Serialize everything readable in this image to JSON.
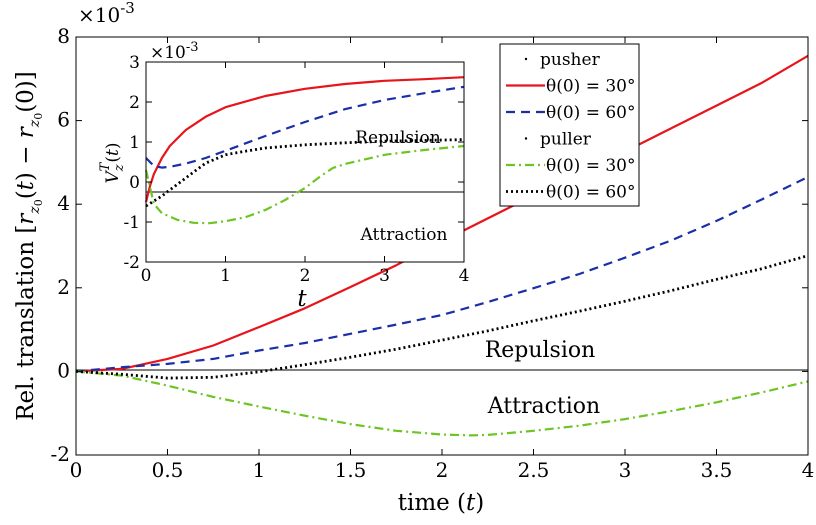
{
  "chart_data": [
    {
      "type": "line",
      "xlabel": "time (t)",
      "ylabel": "Rel. translation [r_{z0}(t) − r_{z0}(0)]",
      "y_exponent": "×10^{-3}",
      "xlim": [
        0,
        4
      ],
      "ylim": [
        -2,
        8
      ],
      "xticks": [
        0,
        0.5,
        1,
        1.5,
        2,
        2.5,
        3,
        3.5,
        4
      ],
      "yticks": [
        -2,
        0,
        2,
        4,
        6,
        8
      ],
      "grid": false,
      "zero_line": true,
      "annotations": [
        "Repulsion",
        "Attraction"
      ],
      "legend": {
        "placement": "top-right",
        "entries": [
          {
            "label": "pusher",
            "header": true
          },
          {
            "label": "θ(0) = 30°",
            "group": "pusher",
            "color": "#e8141c",
            "style": "solid"
          },
          {
            "label": "θ(0) = 60°",
            "group": "pusher",
            "color": "#1a2fa8",
            "style": "dashed"
          },
          {
            "label": "puller",
            "header": true
          },
          {
            "label": "θ(0) = 30°",
            "group": "puller",
            "color": "#6cc521",
            "style": "dashdot"
          },
          {
            "label": "θ(0) = 60°",
            "group": "puller",
            "color": "#000000",
            "style": "dotted"
          }
        ]
      },
      "series": [
        {
          "group": "pusher",
          "theta": "θ(0) = 30°",
          "color": "#e8141c",
          "style": "solid",
          "x": [
            0,
            0.25,
            0.5,
            0.75,
            1,
            1.25,
            1.5,
            1.75,
            2,
            2.25,
            2.5,
            2.75,
            3,
            3.25,
            3.5,
            3.75,
            4
          ],
          "y": [
            0,
            0.06,
            0.3,
            0.62,
            1.06,
            1.51,
            2.02,
            2.54,
            3.11,
            3.66,
            4.21,
            4.74,
            5.26,
            5.81,
            6.36,
            6.91,
            7.55
          ]
        },
        {
          "group": "pusher",
          "theta": "θ(0) = 60°",
          "color": "#1a2fa8",
          "style": "dashed",
          "x": [
            0,
            0.25,
            0.5,
            0.75,
            1,
            1.25,
            1.5,
            1.75,
            2,
            2.25,
            2.5,
            2.75,
            3,
            3.25,
            3.5,
            3.75,
            4
          ],
          "y": [
            0,
            0.1,
            0.18,
            0.3,
            0.5,
            0.68,
            0.9,
            1.12,
            1.35,
            1.66,
            1.99,
            2.33,
            2.72,
            3.13,
            3.6,
            4.12,
            4.65
          ]
        },
        {
          "group": "puller",
          "theta": "θ(0) = 30°",
          "color": "#6cc521",
          "style": "dashdot",
          "x": [
            0,
            0.25,
            0.5,
            0.75,
            1,
            1.25,
            1.5,
            1.75,
            2,
            2.15,
            2.25,
            2.5,
            2.75,
            3,
            3.25,
            3.5,
            3.75,
            4
          ],
          "y": [
            0,
            -0.1,
            -0.34,
            -0.61,
            -0.84,
            -1.06,
            -1.26,
            -1.42,
            -1.51,
            -1.53,
            -1.52,
            -1.42,
            -1.3,
            -1.14,
            -0.95,
            -0.74,
            -0.5,
            -0.24
          ]
        },
        {
          "group": "puller",
          "theta": "θ(0) = 60°",
          "color": "#000000",
          "style": "dotted",
          "x": [
            0,
            0.25,
            0.5,
            0.75,
            1,
            1.25,
            1.5,
            1.75,
            2,
            2.25,
            2.5,
            2.75,
            3,
            3.25,
            3.5,
            3.75,
            4
          ],
          "y": [
            0,
            -0.07,
            -0.16,
            -0.14,
            -0.01,
            0.16,
            0.34,
            0.53,
            0.75,
            0.97,
            1.21,
            1.44,
            1.68,
            1.93,
            2.2,
            2.46,
            2.77
          ]
        }
      ]
    },
    {
      "type": "line",
      "xlabel": "t",
      "ylabel": "V_z^T(t)",
      "y_exponent": "×10^{-3}",
      "xlim": [
        0,
        4
      ],
      "ylim": [
        -2,
        3
      ],
      "xticks": [
        0,
        1,
        2,
        3,
        4
      ],
      "yticks": [
        -2,
        -1,
        0,
        1,
        2,
        3
      ],
      "grid": false,
      "zero_line": true,
      "annotations": [
        "Repulsion",
        "Attraction"
      ],
      "series": [
        {
          "group": "pusher",
          "theta": "θ(0) = 30°",
          "color": "#e8141c",
          "style": "solid",
          "x": [
            0,
            0.05,
            0.1,
            0.2,
            0.3,
            0.5,
            0.75,
            1,
            1.5,
            2,
            2.5,
            3,
            3.5,
            4
          ],
          "y": [
            -0.5,
            -0.1,
            0.2,
            0.6,
            0.9,
            1.3,
            1.63,
            1.87,
            2.15,
            2.33,
            2.45,
            2.53,
            2.57,
            2.62
          ]
        },
        {
          "group": "pusher",
          "theta": "θ(0) = 60°",
          "color": "#1a2fa8",
          "style": "dashed",
          "x": [
            0,
            0.1,
            0.2,
            0.3,
            0.5,
            0.75,
            1,
            1.5,
            2,
            2.5,
            3,
            3.5,
            4
          ],
          "y": [
            0.6,
            0.4,
            0.36,
            0.38,
            0.46,
            0.6,
            0.78,
            1.15,
            1.5,
            1.82,
            2.05,
            2.22,
            2.38
          ]
        },
        {
          "group": "puller",
          "theta": "θ(0) = 30°",
          "color": "#6cc521",
          "style": "dashdot",
          "x": [
            0,
            0.1,
            0.2,
            0.4,
            0.6,
            0.8,
            1,
            1.25,
            1.5,
            1.75,
            2,
            2.2,
            2.35,
            2.5,
            3,
            3.5,
            4
          ],
          "y": [
            0.3,
            -0.55,
            -0.78,
            -0.95,
            -1.02,
            -1.03,
            -0.98,
            -0.88,
            -0.7,
            -0.45,
            -0.15,
            0.15,
            0.35,
            0.45,
            0.68,
            0.8,
            0.9
          ]
        },
        {
          "group": "puller",
          "theta": "θ(0) = 60°",
          "color": "#000000",
          "style": "dotted",
          "x": [
            0,
            0.2,
            0.4,
            0.6,
            0.75,
            1,
            1.25,
            1.5,
            2,
            2.5,
            3,
            3.5,
            4
          ],
          "y": [
            -0.6,
            -0.35,
            -0.05,
            0.25,
            0.47,
            0.68,
            0.77,
            0.85,
            0.93,
            0.98,
            1.02,
            1.04,
            1.06
          ]
        }
      ]
    }
  ]
}
